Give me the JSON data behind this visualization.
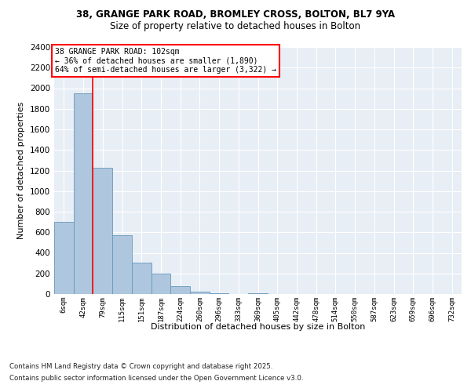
{
  "title1": "38, GRANGE PARK ROAD, BROMLEY CROSS, BOLTON, BL7 9YA",
  "title2": "Size of property relative to detached houses in Bolton",
  "xlabel": "Distribution of detached houses by size in Bolton",
  "ylabel": "Number of detached properties",
  "bar_values": [
    700,
    1950,
    1230,
    570,
    305,
    200,
    75,
    25,
    10,
    0,
    10,
    0,
    0,
    0,
    0,
    0,
    0,
    0,
    0,
    0,
    0
  ],
  "bar_labels": [
    "6sqm",
    "42sqm",
    "79sqm",
    "115sqm",
    "151sqm",
    "187sqm",
    "224sqm",
    "260sqm",
    "296sqm",
    "333sqm",
    "369sqm",
    "405sqm",
    "442sqm",
    "478sqm",
    "514sqm",
    "550sqm",
    "587sqm",
    "623sqm",
    "659sqm",
    "696sqm",
    "732sqm"
  ],
  "bar_color": "#aec6de",
  "bar_edge_color": "#6699bb",
  "property_line_x": 1.5,
  "annotation_text1": "38 GRANGE PARK ROAD: 102sqm",
  "annotation_text2": "← 36% of detached houses are smaller (1,890)",
  "annotation_text3": "64% of semi-detached houses are larger (3,322) →",
  "ylim": [
    0,
    2400
  ],
  "yticks": [
    0,
    200,
    400,
    600,
    800,
    1000,
    1200,
    1400,
    1600,
    1800,
    2000,
    2200,
    2400
  ],
  "bg_color": "#e8eef5",
  "footer1": "Contains HM Land Registry data © Crown copyright and database right 2025.",
  "footer2": "Contains public sector information licensed under the Open Government Licence v3.0."
}
